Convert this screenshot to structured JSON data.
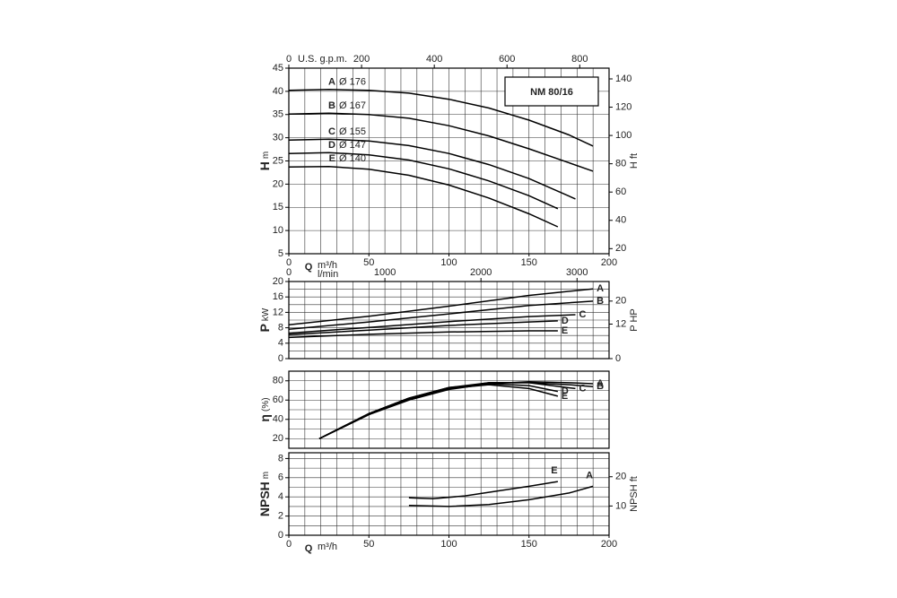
{
  "chart_data": [
    {
      "type": "line",
      "title": "NM 80/16",
      "xlabel": "Q",
      "xunit": "m³/h",
      "ylabel": "H",
      "yunit": "m",
      "y2label": "H ft",
      "x2label": "U.S. g.p.m.",
      "xlim": [
        0,
        200
      ],
      "xticks": [
        0,
        50,
        100,
        150,
        200
      ],
      "xgrid": [
        10,
        20,
        30,
        40,
        50,
        60,
        70,
        80,
        90,
        100,
        110,
        120,
        130,
        140,
        150,
        160,
        170,
        180,
        190
      ],
      "ylim": [
        5,
        45
      ],
      "yticks": [
        5,
        10,
        15,
        20,
        25,
        30,
        35,
        40,
        45
      ],
      "ygrid": [
        10,
        15,
        20,
        25,
        30,
        35,
        40
      ],
      "y2lim": [
        16.4,
        147.6
      ],
      "y2ticks": [
        20,
        40,
        60,
        80,
        100,
        120,
        140
      ],
      "x2lim": [
        0,
        880.6
      ],
      "x2ticks": [
        0,
        200,
        400,
        600,
        800
      ],
      "series": [
        {
          "name": "A",
          "label": "Ø 176",
          "color": "#000000",
          "x": [
            0,
            25,
            50,
            75,
            100,
            125,
            150,
            175,
            190
          ],
          "values": [
            40.2,
            40.4,
            40.2,
            39.6,
            38.3,
            36.4,
            33.8,
            30.6,
            28.2
          ]
        },
        {
          "name": "B",
          "label": "Ø 167",
          "color": "#000000",
          "x": [
            0,
            25,
            50,
            75,
            100,
            125,
            150,
            175,
            190
          ],
          "values": [
            35.1,
            35.3,
            35.0,
            34.2,
            32.6,
            30.4,
            27.6,
            24.6,
            22.8
          ]
        },
        {
          "name": "C",
          "label": "Ø 155",
          "color": "#000000",
          "x": [
            0,
            25,
            50,
            75,
            100,
            125,
            150,
            179
          ],
          "values": [
            29.5,
            29.7,
            29.3,
            28.3,
            26.6,
            24.2,
            21.2,
            16.8
          ]
        },
        {
          "name": "D",
          "label": "Ø 147",
          "color": "#000000",
          "x": [
            0,
            25,
            50,
            75,
            100,
            125,
            150,
            168
          ],
          "values": [
            26.6,
            26.8,
            26.3,
            25.2,
            23.3,
            20.7,
            17.5,
            14.7
          ]
        },
        {
          "name": "E",
          "label": "Ø 140",
          "color": "#000000",
          "x": [
            0,
            25,
            50,
            75,
            100,
            125,
            150,
            168
          ],
          "values": [
            23.7,
            23.8,
            23.2,
            21.9,
            19.8,
            17.0,
            13.6,
            10.8
          ]
        }
      ]
    },
    {
      "type": "line",
      "ylabel": "P",
      "yunit": "kW",
      "y2label": "P HP",
      "x2label": "l/min",
      "xlim": [
        0,
        200
      ],
      "xgrid": [
        10,
        20,
        30,
        40,
        50,
        60,
        70,
        80,
        90,
        100,
        110,
        120,
        130,
        140,
        150,
        160,
        170,
        180,
        190
      ],
      "ylim": [
        0,
        20
      ],
      "yticks": [
        0,
        4,
        8,
        12,
        16,
        20
      ],
      "ygrid": [
        2,
        4,
        6,
        8,
        10,
        12,
        14,
        16,
        18
      ],
      "y2lim": [
        0,
        26.8
      ],
      "y2ticks": [
        0,
        12,
        20
      ],
      "x2lim": [
        0,
        3333.3
      ],
      "x2ticks": [
        0,
        1000,
        2000,
        3000
      ],
      "series": [
        {
          "name": "A",
          "color": "#000000",
          "x": [
            0,
            50,
            100,
            150,
            190
          ],
          "values": [
            8.8,
            11.0,
            13.6,
            16.4,
            18.1
          ]
        },
        {
          "name": "B",
          "color": "#000000",
          "x": [
            0,
            50,
            100,
            150,
            190
          ],
          "values": [
            7.6,
            9.5,
            11.6,
            13.8,
            14.9
          ]
        },
        {
          "name": "C",
          "color": "#000000",
          "x": [
            0,
            50,
            100,
            150,
            179
          ],
          "values": [
            6.6,
            8.1,
            9.6,
            10.9,
            11.4
          ]
        },
        {
          "name": "D",
          "color": "#000000",
          "x": [
            0,
            50,
            100,
            150,
            168
          ],
          "values": [
            6.2,
            7.4,
            8.6,
            9.5,
            9.8
          ]
        },
        {
          "name": "E",
          "color": "#000000",
          "x": [
            0,
            50,
            100,
            150,
            168
          ],
          "values": [
            5.5,
            6.3,
            6.9,
            7.2,
            7.2
          ]
        }
      ]
    },
    {
      "type": "line",
      "ylabel": "η",
      "yunit": "(%)",
      "xlim": [
        0,
        200
      ],
      "xgrid": [
        10,
        20,
        30,
        40,
        50,
        60,
        70,
        80,
        90,
        100,
        110,
        120,
        130,
        140,
        150,
        160,
        170,
        180,
        190
      ],
      "ylim": [
        10,
        90
      ],
      "yticks": [
        20,
        40,
        60,
        80
      ],
      "ygrid": [
        20,
        30,
        40,
        50,
        60,
        70,
        80
      ],
      "series": [
        {
          "name": "A",
          "color": "#000000",
          "x": [
            19,
            50,
            75,
            100,
            125,
            150,
            175,
            190
          ],
          "values": [
            20,
            45,
            60,
            71,
            77,
            79,
            78,
            77
          ]
        },
        {
          "name": "B",
          "color": "#000000",
          "x": [
            19,
            50,
            75,
            100,
            125,
            150,
            175,
            190
          ],
          "values": [
            20,
            45,
            61,
            72,
            78,
            78,
            76,
            74
          ]
        },
        {
          "name": "C",
          "color": "#000000",
          "x": [
            19,
            50,
            75,
            100,
            125,
            150,
            179
          ],
          "values": [
            20,
            46,
            62,
            73,
            78,
            78,
            72
          ]
        },
        {
          "name": "D",
          "color": "#000000",
          "x": [
            19,
            50,
            75,
            100,
            125,
            150,
            168
          ],
          "values": [
            20,
            46,
            62,
            73,
            77,
            75,
            69
          ]
        },
        {
          "name": "E",
          "color": "#000000",
          "x": [
            19,
            50,
            75,
            100,
            125,
            150,
            168
          ],
          "values": [
            20,
            46,
            62,
            72,
            76,
            72,
            64
          ]
        }
      ]
    },
    {
      "type": "line",
      "xlabel": "Q",
      "xunit": "m³/h",
      "ylabel": "NPSH",
      "yunit": "m",
      "y2label": "NPSH ft",
      "xlim": [
        0,
        200
      ],
      "xticks": [
        0,
        50,
        100,
        150,
        200
      ],
      "xgrid": [
        10,
        20,
        30,
        40,
        50,
        60,
        70,
        80,
        90,
        100,
        110,
        120,
        130,
        140,
        150,
        160,
        170,
        180,
        190
      ],
      "ylim": [
        0,
        8.6
      ],
      "yticks": [
        0,
        2,
        4,
        6,
        8
      ],
      "ygrid": [
        1,
        2,
        3,
        4,
        5,
        6,
        7,
        8
      ],
      "y2lim": [
        0,
        28.2
      ],
      "y2ticks": [
        10,
        20
      ],
      "series": [
        {
          "name": "E",
          "color": "#000000",
          "x": [
            75,
            90,
            110,
            130,
            150,
            168
          ],
          "values": [
            3.9,
            3.8,
            4.1,
            4.6,
            5.1,
            5.6
          ]
        },
        {
          "name": "A",
          "color": "#000000",
          "x": [
            75,
            100,
            125,
            150,
            175,
            190
          ],
          "values": [
            3.1,
            3.0,
            3.2,
            3.7,
            4.4,
            5.1
          ]
        }
      ]
    }
  ]
}
